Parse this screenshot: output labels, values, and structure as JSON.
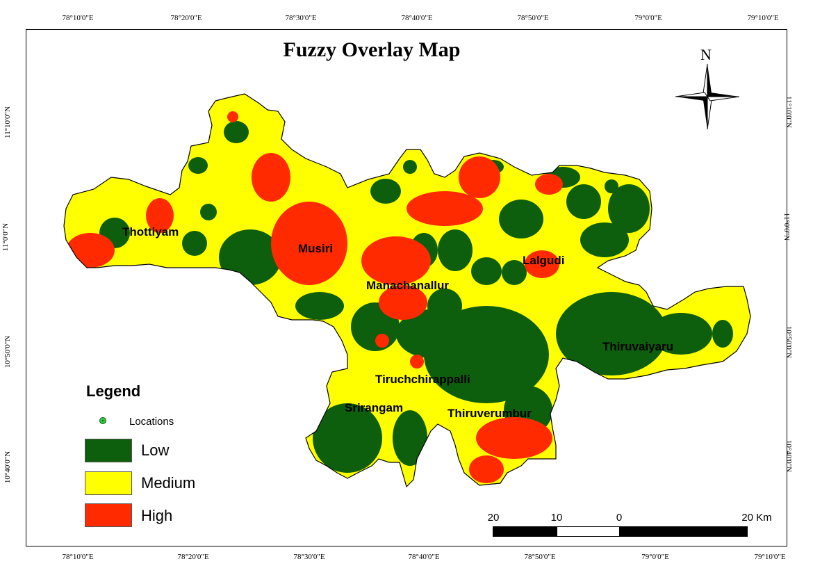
{
  "title": "Fuzzy Overlay Map",
  "graticule": {
    "top": [
      "78°10'0\"E",
      "78°20'0\"E",
      "78°30'0\"E",
      "78°40'0\"E",
      "78°50'0\"E",
      "79°0'0\"E",
      "79°10'0\"E"
    ],
    "bottom": [
      "78°10'0\"E",
      "78°20'0\"E",
      "78°30'0\"E",
      "78°40'0\"E",
      "78°50'0\"E",
      "79°0'0\"E",
      "79°10'0\"E"
    ],
    "left": [
      "11°10'0\"N",
      "11°0'0\"N",
      "10°50'0\"N",
      "10°40'0\"N"
    ],
    "right": [
      "11°10'0\"N",
      "11°0'0\"N",
      "10°50'0\"N",
      "10°40'0\"N"
    ]
  },
  "places": [
    "Thottiyam",
    "Musiri",
    "Lalgudi",
    "Manachanallur",
    "Thiruvaiyaru",
    "Tiruchchirappalli",
    "Srirangam",
    "Thiruverumbur"
  ],
  "north_arrow": {
    "label": "N"
  },
  "legend": {
    "title": "Legend",
    "point_label": "Locations",
    "classes": [
      {
        "label": "Low",
        "color": "#0d5e0d"
      },
      {
        "label": "Medium",
        "color": "#ffff00"
      },
      {
        "label": "High",
        "color": "#ff2a00"
      }
    ]
  },
  "scale_bar": {
    "labels": [
      "20",
      "10",
      "0",
      "20 Km"
    ]
  }
}
